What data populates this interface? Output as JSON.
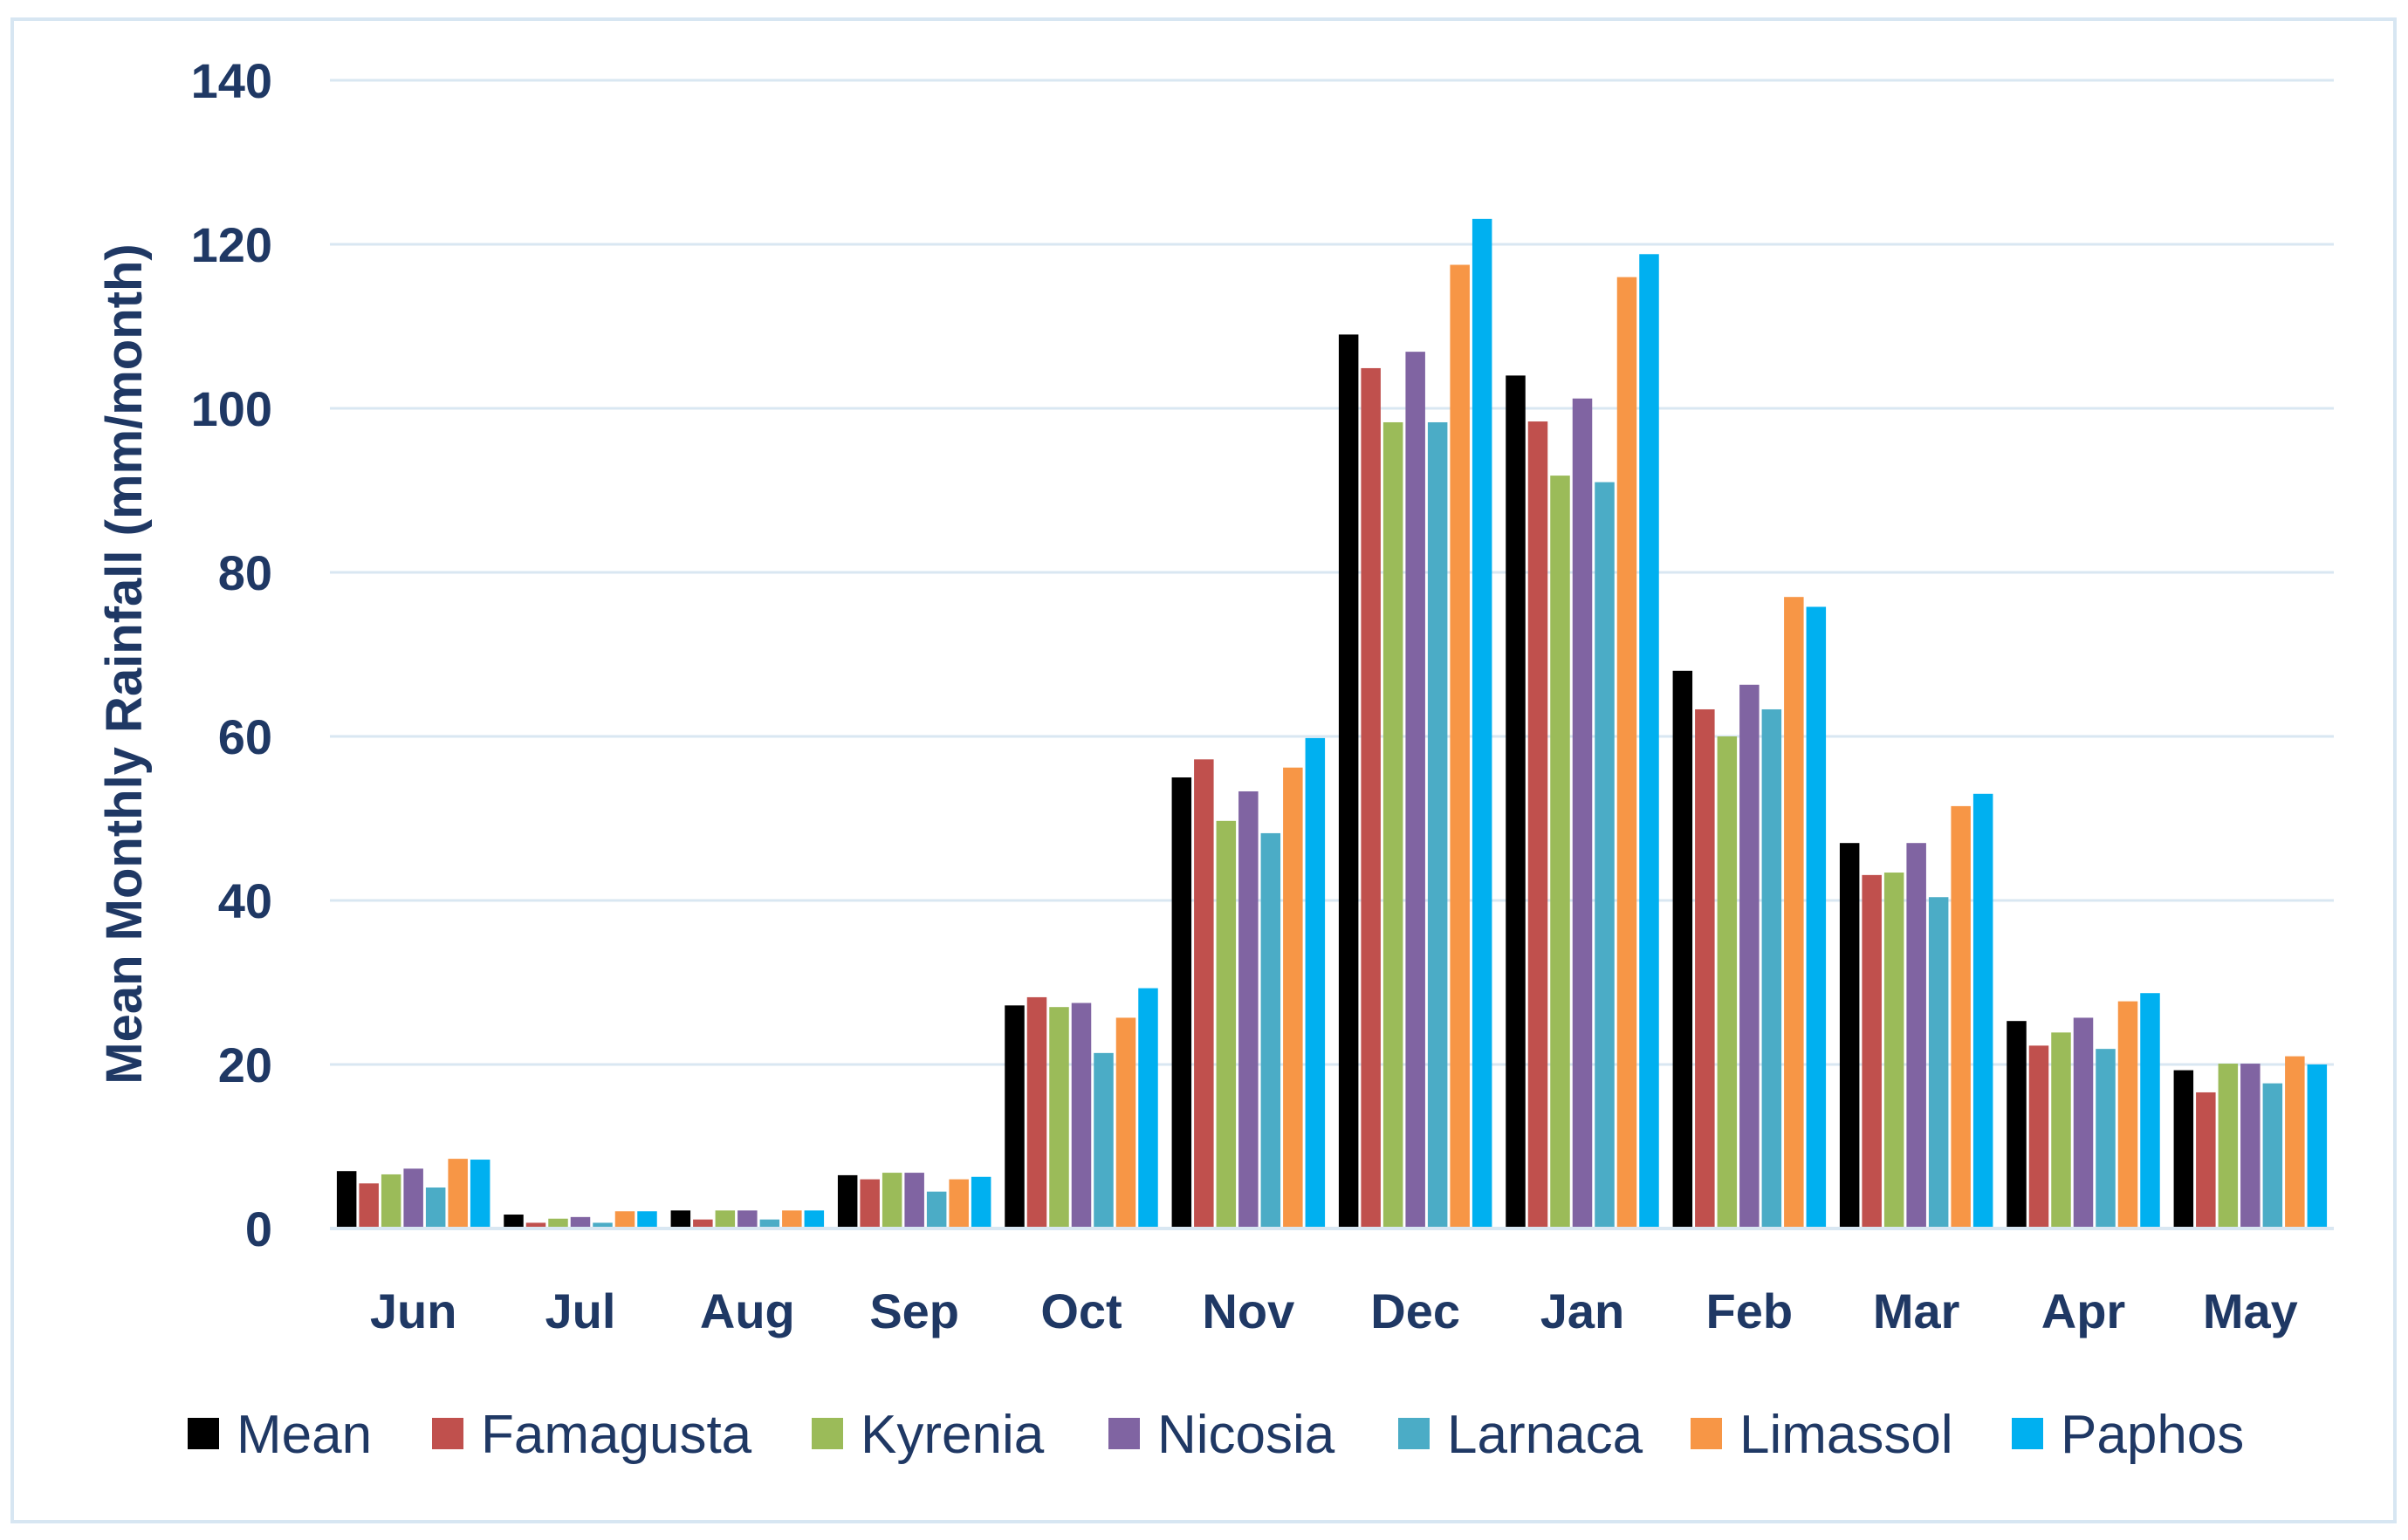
{
  "chart_data": {
    "type": "bar",
    "title": "",
    "xlabel": "",
    "ylabel": "Mean Monthly Rainfall (mm/month)",
    "ylim": [
      0,
      140
    ],
    "yticks": [
      0,
      20,
      40,
      60,
      80,
      100,
      120,
      140
    ],
    "grid": true,
    "legend_position": "bottom",
    "categories": [
      "Jun",
      "Jul",
      "Aug",
      "Sep",
      "Oct",
      "Nov",
      "Dec",
      "Jan",
      "Feb",
      "Mar",
      "Apr",
      "May"
    ],
    "series": [
      {
        "name": "Mean",
        "color": "#000000",
        "values": [
          7.0,
          1.7,
          2.2,
          6.5,
          27.2,
          55.0,
          109.0,
          104.0,
          68.0,
          47.0,
          25.3,
          19.3
        ]
      },
      {
        "name": "Famagusta",
        "color": "#C0504D",
        "values": [
          5.5,
          0.7,
          1.1,
          6.0,
          28.2,
          57.2,
          104.9,
          98.4,
          63.3,
          43.1,
          22.3,
          16.6
        ]
      },
      {
        "name": "Kyrenia",
        "color": "#9BBB59",
        "values": [
          6.6,
          1.2,
          2.2,
          6.8,
          27.0,
          49.7,
          98.3,
          91.8,
          60.0,
          43.4,
          23.9,
          20.1
        ]
      },
      {
        "name": "Nicosia",
        "color": "#8064A2",
        "values": [
          7.3,
          1.4,
          2.2,
          6.8,
          27.5,
          53.3,
          106.9,
          101.2,
          66.3,
          47.0,
          25.7,
          20.1
        ]
      },
      {
        "name": "Larnaca",
        "color": "#4BACC6",
        "values": [
          5.0,
          0.7,
          1.1,
          4.5,
          21.4,
          48.2,
          98.3,
          91.0,
          63.3,
          40.4,
          21.9,
          17.7
        ]
      },
      {
        "name": "Limassol",
        "color": "#F79646",
        "values": [
          8.5,
          2.1,
          2.2,
          6.0,
          25.7,
          56.2,
          117.5,
          116.0,
          77.0,
          51.5,
          27.7,
          21.0
        ]
      },
      {
        "name": "Paphos",
        "color": "#00B0F0",
        "values": [
          8.4,
          2.1,
          2.2,
          6.3,
          29.3,
          59.8,
          123.1,
          118.8,
          75.8,
          53.0,
          28.7,
          20.0
        ]
      }
    ]
  },
  "colors": {
    "axis_text": "#1F3864",
    "gridline": "#D9E7F2",
    "frame_border": "#D7E6F2"
  }
}
